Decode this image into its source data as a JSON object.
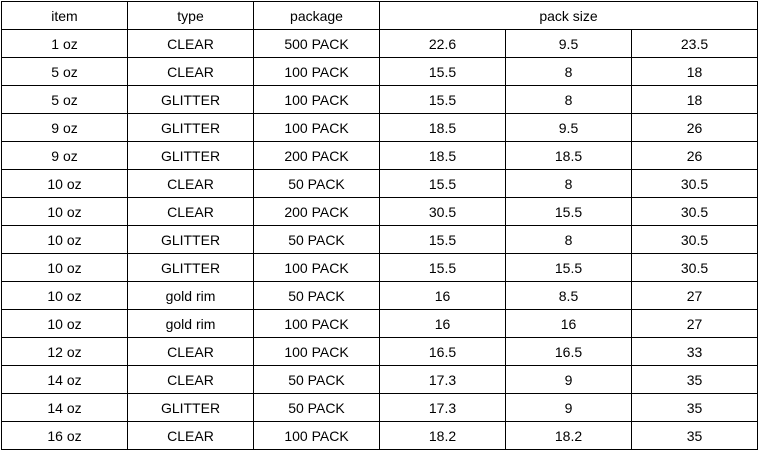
{
  "table": {
    "header": [
      "item",
      "type",
      "package",
      "pack size"
    ],
    "rows": [
      [
        "1 oz",
        "CLEAR",
        "500 PACK",
        "22.6",
        "9.5",
        "23.5"
      ],
      [
        "5 oz",
        "CLEAR",
        "100 PACK",
        "15.5",
        "8",
        "18"
      ],
      [
        "5 oz",
        "GLITTER",
        "100 PACK",
        "15.5",
        "8",
        "18"
      ],
      [
        "9 oz",
        "GLITTER",
        "100 PACK",
        "18.5",
        "9.5",
        "26"
      ],
      [
        "9 oz",
        "GLITTER",
        "200 PACK",
        "18.5",
        "18.5",
        "26"
      ],
      [
        "10 oz",
        "CLEAR",
        "50 PACK",
        "15.5",
        "8",
        "30.5"
      ],
      [
        "10 oz",
        "CLEAR",
        "200 PACK",
        "30.5",
        "15.5",
        "30.5"
      ],
      [
        "10 oz",
        "GLITTER",
        "50 PACK",
        "15.5",
        "8",
        "30.5"
      ],
      [
        "10 oz",
        "GLITTER",
        "100 PACK",
        "15.5",
        "15.5",
        "30.5"
      ],
      [
        "10 oz",
        "gold rim",
        "50 PACK",
        "16",
        "8.5",
        "27"
      ],
      [
        "10 oz",
        "gold rim",
        "100 PACK",
        "16",
        "16",
        "27"
      ],
      [
        "12 oz",
        "CLEAR",
        "100 PACK",
        "16.5",
        "16.5",
        "33"
      ],
      [
        "14 oz",
        "CLEAR",
        "50 PACK",
        "17.3",
        "9",
        "35"
      ],
      [
        "14 oz",
        "GLITTER",
        "50 PACK",
        "17.3",
        "9",
        "35"
      ],
      [
        "16 oz",
        "CLEAR",
        "100 PACK",
        "18.2",
        "18.2",
        "35"
      ]
    ]
  }
}
